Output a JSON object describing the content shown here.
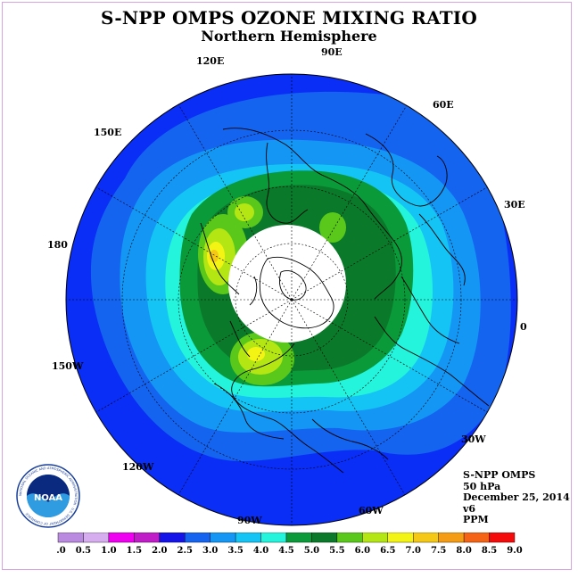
{
  "title": "S-NPP OMPS OZONE MIXING RATIO",
  "subtitle": "Northern Hemisphere",
  "longitude_labels": [
    "90E",
    "60E",
    "30E",
    "0",
    "30W",
    "60W",
    "90W",
    "120W",
    "150W",
    "180",
    "150E",
    "120E"
  ],
  "info": {
    "instrument": "S-NPP OMPS",
    "pressure_level": "50 hPa",
    "date": "December 25, 2014",
    "version": "v6",
    "units": "PPM"
  },
  "logo": {
    "text": "NOAA",
    "ring_text": "NATIONAL OCEANIC AND ATMOSPHERIC ADMINISTRATION · U.S. DEPARTMENT OF COMMERCE"
  },
  "colorbar": {
    "ticks": [
      "0.0",
      "0.5",
      "1.0",
      "1.5",
      "2.0",
      "2.5",
      "3.0",
      "3.5",
      "4.0",
      "4.5",
      "5.0",
      "5.5",
      "6.0",
      "6.5",
      "7.0",
      "7.5",
      "8.0",
      "8.5",
      "9.0"
    ],
    "colors": [
      "#b98ae0",
      "#d6aef0",
      "#f000f0",
      "#c01cc8",
      "#1414e8",
      "#1464f0",
      "#1496f4",
      "#14c4f4",
      "#24f4dc",
      "#0a9a3a",
      "#0a7a2a",
      "#5ac81a",
      "#b4e614",
      "#f4f414",
      "#f4c814",
      "#f49c14",
      "#f46414",
      "#f40a0a",
      "#8c5a3a"
    ]
  },
  "palette": {
    "ozone_2_0": "#0a2ef5",
    "ozone_2_5": "#1464f0",
    "ozone_3_0": "#1496f4",
    "ozone_3_5": "#14c4f4",
    "ozone_4_0": "#24f4dc",
    "ozone_4_5": "#0a9a3a",
    "ozone_5_0": "#0a7a2a",
    "ozone_5_5": "#5ac81a",
    "ozone_6_0": "#b4e614",
    "ozone_6_5": "#f4f414",
    "ozone_7_0": "#f4c814",
    "polar_night": "#ffffff"
  }
}
